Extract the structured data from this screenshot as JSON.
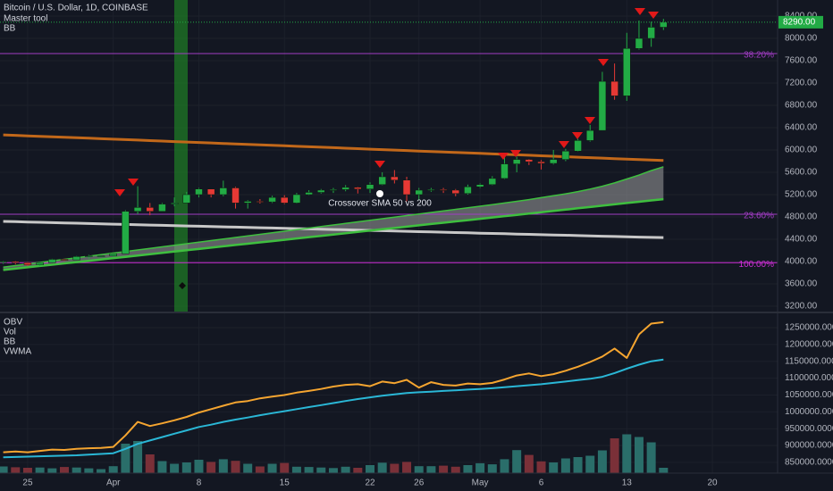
{
  "chart_data": [
    {
      "type": "candlestick",
      "title": "Bitcoin / U.S. Dollar, 1D, COINBASE",
      "indicators": [
        "Master tool",
        "BB"
      ],
      "categories": [
        null,
        null,
        "25",
        null,
        null,
        null,
        null,
        null,
        null,
        "Apr",
        null,
        null,
        null,
        null,
        null,
        null,
        "8",
        null,
        null,
        null,
        null,
        null,
        null,
        "15",
        null,
        null,
        null,
        null,
        null,
        null,
        "22",
        null,
        null,
        null,
        "26",
        null,
        null,
        null,
        null,
        "May",
        null,
        null,
        null,
        null,
        "6",
        null,
        null,
        null,
        null,
        null,
        null,
        "13",
        null,
        null,
        null,
        null,
        null,
        null,
        "20",
        null
      ],
      "open": [
        3990,
        4000,
        3980,
        3940,
        3980,
        4040,
        4030,
        4090,
        4100,
        4100,
        4140,
        4900,
        4970,
        4900,
        5030,
        5050,
        5200,
        5300,
        5200,
        5320,
        5050,
        5080,
        5070,
        5150,
        5050,
        5200,
        5240,
        5280,
        5290,
        5330,
        5300,
        5380,
        5520,
        5460,
        5200,
        5280,
        5290,
        5280,
        5220,
        5340,
        5380,
        5490,
        5750,
        5830,
        5790,
        5760,
        5830,
        5980,
        6170,
        6350,
        7230,
        6970,
        7820,
        8000,
        8200,
        null,
        null,
        null,
        null,
        null
      ],
      "high": [
        4010,
        4010,
        3990,
        3990,
        4050,
        4050,
        4100,
        4120,
        4110,
        4150,
        4920,
        5350,
        5050,
        5050,
        5150,
        5250,
        5320,
        5300,
        5450,
        5340,
        5100,
        5120,
        5180,
        5190,
        5230,
        5280,
        5300,
        5320,
        5370,
        5340,
        5420,
        5600,
        5640,
        5520,
        5320,
        5320,
        5320,
        5300,
        5380,
        5400,
        5530,
        5900,
        5880,
        5840,
        5820,
        6000,
        6020,
        6200,
        6450,
        7400,
        7550,
        8100,
        8320,
        8300,
        8350,
        null,
        null,
        null,
        null,
        null
      ],
      "low": [
        3960,
        3950,
        3920,
        3920,
        3970,
        4010,
        4020,
        4050,
        4080,
        4090,
        4140,
        4850,
        4830,
        4900,
        4990,
        5050,
        5150,
        5150,
        5170,
        4950,
        4950,
        5040,
        5050,
        5030,
        5040,
        5190,
        5220,
        5230,
        5260,
        5220,
        5230,
        5370,
        5400,
        5080,
        5100,
        5250,
        5230,
        5170,
        5200,
        5320,
        5370,
        5480,
        5600,
        5730,
        5650,
        5740,
        5800,
        5970,
        6150,
        6350,
        6900,
        6880,
        7800,
        7850,
        8150,
        null,
        null,
        null,
        null,
        null
      ],
      "close": [
        4000,
        3980,
        3940,
        3980,
        4040,
        4030,
        4090,
        4100,
        4100,
        4140,
        4900,
        4970,
        4900,
        5030,
        5050,
        5200,
        5300,
        5200,
        5320,
        5050,
        5080,
        5070,
        5150,
        5050,
        5200,
        5240,
        5280,
        5290,
        5330,
        5300,
        5380,
        5520,
        5460,
        5200,
        5280,
        5290,
        5280,
        5220,
        5340,
        5380,
        5490,
        5750,
        5830,
        5790,
        5760,
        5830,
        5980,
        6170,
        6350,
        7230,
        6970,
        7820,
        8000,
        8200,
        8290,
        null,
        null,
        null,
        null,
        null
      ],
      "up_color": "#22ab45",
      "down_color": "#e53935",
      "series": [
        {
          "color": "#c2681a",
          "width": 3,
          "values": [
            6270,
            6262,
            6253,
            6245,
            6236,
            6228,
            6219,
            6211,
            6202,
            6194,
            6185,
            6177,
            6168,
            6160,
            6151,
            6143,
            6134,
            6126,
            6117,
            6109,
            6100,
            6092,
            6083,
            6075,
            6066,
            6058,
            6049,
            6041,
            6032,
            6024,
            6015,
            6007,
            5998,
            5990,
            5981,
            5973,
            5964,
            5956,
            5947,
            5939,
            5930,
            5922,
            5913,
            5905,
            5896,
            5888,
            5879,
            5871,
            5862,
            5854,
            5845,
            5837,
            5828,
            5820,
            5811,
            null,
            null,
            null,
            null,
            null
          ]
        },
        {
          "color": "#c8c8c8",
          "width": 3,
          "values": [
            4720,
            4715,
            4709,
            4704,
            4698,
            4693,
            4688,
            4682,
            4677,
            4671,
            4666,
            4661,
            4655,
            4650,
            4644,
            4639,
            4634,
            4628,
            4623,
            4617,
            4612,
            4607,
            4601,
            4596,
            4590,
            4585,
            4580,
            4574,
            4569,
            4563,
            4558,
            4553,
            4547,
            4542,
            4536,
            4531,
            4526,
            4520,
            4515,
            4509,
            4504,
            4499,
            4493,
            4488,
            4482,
            4477,
            4472,
            4466,
            4461,
            4455,
            4450,
            4445,
            4439,
            4434,
            4430,
            null,
            null,
            null,
            null,
            null
          ]
        },
        {
          "color": "#3fbf3f",
          "width": 2.5,
          "values": [
            3850,
            3874,
            3897,
            3921,
            3944,
            3968,
            3991,
            4015,
            4038,
            4062,
            4085,
            4109,
            4132,
            4156,
            4179,
            4203,
            4226,
            4250,
            4273,
            4297,
            4320,
            4344,
            4367,
            4391,
            4414,
            4438,
            4461,
            4485,
            4508,
            4532,
            4555,
            4579,
            4602,
            4626,
            4649,
            4673,
            4696,
            4720,
            4743,
            4767,
            4790,
            4814,
            4837,
            4861,
            4884,
            4908,
            4931,
            4955,
            4978,
            5002,
            5025,
            5049,
            5072,
            5096,
            5119,
            null,
            null,
            null,
            null,
            null
          ]
        },
        {
          "color": "#3fbf3f",
          "width": 1.5,
          "values": [
            3900,
            3928,
            3956,
            3984,
            4012,
            4040,
            4068,
            4096,
            4124,
            4152,
            4180,
            4208,
            4236,
            4264,
            4292,
            4320,
            4348,
            4376,
            4404,
            4432,
            4460,
            4488,
            4516,
            4544,
            4572,
            4600,
            4628,
            4656,
            4684,
            4712,
            4740,
            4768,
            4796,
            4824,
            4852,
            4880,
            4908,
            4936,
            4964,
            4992,
            5020,
            5050,
            5080,
            5110,
            5145,
            5180,
            5215,
            5255,
            5300,
            5350,
            5410,
            5480,
            5550,
            5630,
            5700,
            null,
            null,
            null,
            null,
            null
          ]
        }
      ],
      "cloud_fill": "#9e9e9e",
      "annotation": "Crossover SMA 50 vs 200",
      "levels": [
        {
          "label": "38.20%",
          "value": 7728,
          "color": "#a23dc4"
        },
        {
          "label": "23.60%",
          "value": 4848,
          "color": "#a23dc4"
        },
        {
          "label": "100.00%",
          "value": 3980,
          "color": "#d02fd8"
        }
      ],
      "last_price": {
        "value": 8290,
        "label": "8290.00"
      },
      "ylim": [
        3088,
        8688
      ],
      "yticks": [
        {
          "value": 3200,
          "label": "3200.00"
        },
        {
          "value": 3600,
          "label": "3600.00"
        },
        {
          "value": 4000,
          "label": "4000.00"
        },
        {
          "value": 4400,
          "label": "4400.00"
        },
        {
          "value": 4800,
          "label": "4800.00"
        },
        {
          "value": 5200,
          "label": "5200.00"
        },
        {
          "value": 5600,
          "label": "5600.00"
        },
        {
          "value": 6000,
          "label": "6000.00"
        },
        {
          "value": 6400,
          "label": "6400.00"
        },
        {
          "value": 6800,
          "label": "6800.00"
        },
        {
          "value": 7200,
          "label": "7200.00"
        },
        {
          "value": 7600,
          "label": "7600.00"
        },
        {
          "value": 8000,
          "label": "8000.00"
        },
        {
          "value": 8400,
          "label": "8400.00"
        }
      ],
      "grid": true
    },
    {
      "type": "line",
      "indicators": [
        "OBV",
        "Vol",
        "BB",
        "VWMA"
      ],
      "series": [
        {
          "color": "#f5a530",
          "width": 2,
          "values": [
            880000,
            882000,
            880000,
            884000,
            888000,
            887000,
            890000,
            892000,
            893000,
            896000,
            930000,
            970000,
            958000,
            966000,
            975000,
            985000,
            998000,
            1008000,
            1018000,
            1028000,
            1032000,
            1040000,
            1045000,
            1050000,
            1057000,
            1062000,
            1068000,
            1075000,
            1080000,
            1082000,
            1076000,
            1090000,
            1085000,
            1095000,
            1072000,
            1088000,
            1080000,
            1078000,
            1084000,
            1082000,
            1086000,
            1096000,
            1108000,
            1114000,
            1106000,
            1112000,
            1122000,
            1134000,
            1148000,
            1164000,
            1188000,
            1160000,
            1230000,
            1262000,
            1266000,
            null,
            null,
            null,
            null,
            null
          ]
        },
        {
          "color": "#2ab7d6",
          "width": 2,
          "values": [
            865000,
            866000,
            867000,
            868000,
            869000,
            870000,
            871000,
            873000,
            875000,
            877000,
            890000,
            905000,
            915000,
            925000,
            935000,
            945000,
            955000,
            962000,
            970000,
            977000,
            983000,
            990000,
            996000,
            1002000,
            1008000,
            1014000,
            1020000,
            1026000,
            1032000,
            1038000,
            1043000,
            1048000,
            1052000,
            1056000,
            1058000,
            1060000,
            1062000,
            1064000,
            1066000,
            1068000,
            1070000,
            1073000,
            1076000,
            1079000,
            1082000,
            1086000,
            1090000,
            1094000,
            1098000,
            1104000,
            1115000,
            1128000,
            1140000,
            1150000,
            1155000,
            null,
            null,
            null,
            null,
            null
          ]
        }
      ],
      "volume": {
        "values": [
          2500,
          2200,
          2000,
          2100,
          1800,
          2300,
          2100,
          1800,
          1500,
          2600,
          11000,
          12000,
          7000,
          4500,
          3500,
          4000,
          5000,
          4200,
          5200,
          4600,
          3500,
          2500,
          3500,
          3800,
          2400,
          2300,
          2100,
          1900,
          2400,
          2000,
          3000,
          3900,
          3500,
          4200,
          2600,
          2600,
          2800,
          2400,
          3000,
          3700,
          3300,
          5200,
          8600,
          6800,
          4400,
          4000,
          5500,
          6000,
          6500,
          8500,
          13000,
          14500,
          13500,
          11500,
          2000,
          null,
          null,
          null,
          null,
          null
        ],
        "up_color": "#2a6e6a",
        "down_color": "#7a3038",
        "ylim": [
          0,
          60000
        ]
      },
      "ylim": [
        818000,
        1295000
      ],
      "yticks": [
        {
          "value": 850000,
          "label": "850000.0000"
        },
        {
          "value": 900000,
          "label": "900000.0000"
        },
        {
          "value": 950000,
          "label": "950000.0000"
        },
        {
          "value": 1000000,
          "label": "1000000.0000"
        },
        {
          "value": 1050000,
          "label": "1050000.0000"
        },
        {
          "value": 1100000,
          "label": "1100000.0000"
        },
        {
          "value": 1150000,
          "label": "1150000.0000"
        },
        {
          "value": 1200000,
          "label": "1200000.0000"
        },
        {
          "value": 1250000,
          "label": "1250000.0000"
        }
      ],
      "grid": true
    }
  ]
}
